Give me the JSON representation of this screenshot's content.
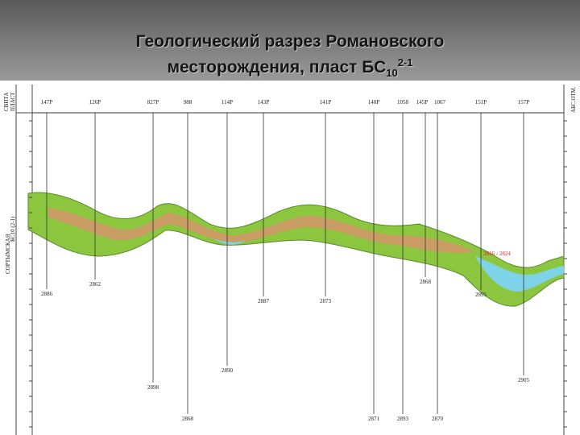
{
  "header": {
    "title_line1": "Геологический разрез Романовского",
    "title_line2": "месторождения, пласт БС",
    "subscript": "10",
    "superscript": "2-1"
  },
  "section": {
    "column_headers": [
      "СВИТА",
      "ПЛАСТ"
    ],
    "formation": "СОРТЫМСКАЯ",
    "layer": "БС10 (2-1)",
    "right_axis": "АБС.ОТМ.",
    "annotation": "2816 - 2824",
    "wells": [
      {
        "name": "147Р",
        "depth": "2886"
      },
      {
        "name": "126Р",
        "depth": "2862"
      },
      {
        "name": "827Р",
        "depth": "2898"
      },
      {
        "name": "988",
        "depth": "2868"
      },
      {
        "name": "114Р",
        "depth": "2890"
      },
      {
        "name": "143Р",
        "depth": "2887"
      },
      {
        "name": "141Р",
        "depth": "2873"
      },
      {
        "name": "140Р",
        "depth": "2871"
      },
      {
        "name": "1058",
        "depth": "2893"
      },
      {
        "name": "145Р",
        "depth": "2868"
      },
      {
        "name": "1067",
        "depth": "2870"
      },
      {
        "name": "151Р",
        "depth": "2895"
      },
      {
        "name": "157Р",
        "depth": "2905"
      }
    ]
  }
}
